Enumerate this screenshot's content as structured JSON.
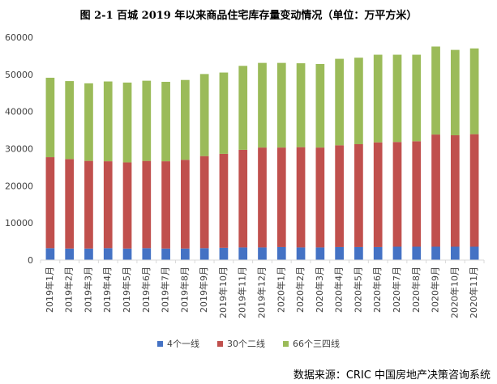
{
  "chart_data": {
    "type": "bar",
    "stacked": true,
    "title": "图 2-1 百城 2019 年以来商品住宅库存量变动情况（单位：万平方米）",
    "categories": [
      "2019年1月",
      "2019年2月",
      "2019年3月",
      "2019年4月",
      "2019年5月",
      "2019年6月",
      "2019年7月",
      "2019年8月",
      "2019年9月",
      "2019年10月",
      "2019年11月",
      "2019年12月",
      "2020年1月",
      "2020年2月",
      "2020年3月",
      "2020年4月",
      "2020年5月",
      "2020年6月",
      "2020年7月",
      "2020年8月",
      "2020年9月",
      "2020年10月",
      "2020年11月"
    ],
    "series": [
      {
        "name": "4个一线",
        "color": "#4472c4",
        "values": [
          3200,
          3100,
          3100,
          3200,
          3100,
          3200,
          3100,
          3100,
          3200,
          3300,
          3400,
          3400,
          3500,
          3400,
          3400,
          3500,
          3500,
          3500,
          3600,
          3600,
          3600,
          3600,
          3600
        ]
      },
      {
        "name": "30个二线",
        "color": "#c0504d",
        "values": [
          24500,
          24100,
          23600,
          23400,
          23200,
          23500,
          23500,
          23900,
          24800,
          25300,
          26300,
          26900,
          26800,
          27000,
          26900,
          27400,
          27700,
          28200,
          28200,
          28400,
          30200,
          30000,
          30300
        ]
      },
      {
        "name": "66个三四线",
        "color": "#9bbb59",
        "values": [
          21400,
          21000,
          20900,
          21500,
          21500,
          21600,
          21400,
          21500,
          22100,
          21900,
          22600,
          22800,
          22800,
          22600,
          22500,
          23300,
          23300,
          23600,
          23500,
          23300,
          23700,
          23000,
          23100
        ]
      }
    ],
    "ylim": [
      0,
      60000
    ],
    "yticks": [
      0,
      10000,
      20000,
      30000,
      40000,
      50000,
      60000
    ],
    "legend_position": "bottom",
    "grid": false
  },
  "source": "数据来源：CRIC 中国房地产决策咨询系统"
}
